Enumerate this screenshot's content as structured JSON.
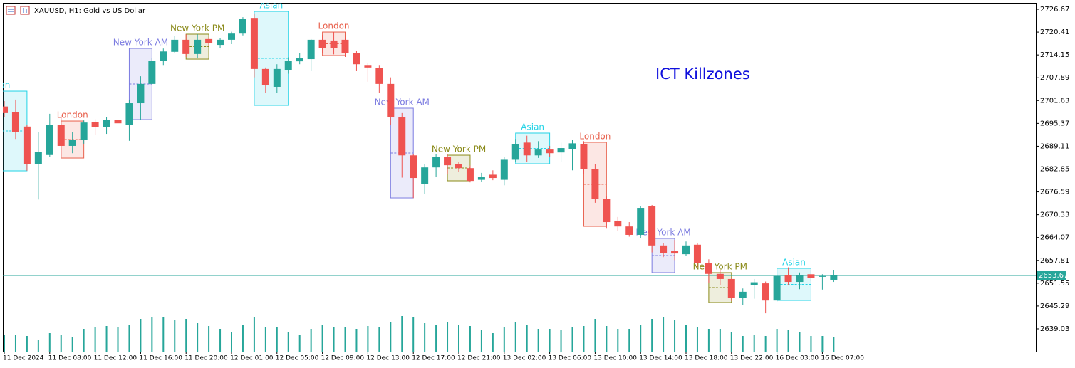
{
  "chart_data": {
    "type": "candlestick",
    "title": "XAUUSD, H1: Gold vs US Dollar",
    "annotation": "ICT Killzones",
    "categories": [
      "11 Dec 2024",
      null,
      null,
      null,
      "11 Dec 08:00",
      null,
      null,
      null,
      "11 Dec 12:00",
      null,
      null,
      null,
      "11 Dec 16:00",
      null,
      null,
      null,
      "11 Dec 20:00",
      null,
      null,
      null,
      "12 Dec 01:00",
      null,
      null,
      null,
      "12 Dec 05:00",
      null,
      null,
      null,
      "12 Dec 09:00",
      null,
      null,
      null,
      "12 Dec 13:00",
      null,
      null,
      null,
      "12 Dec 17:00",
      null,
      null,
      null,
      "12 Dec 21:00",
      null,
      null,
      null,
      "13 Dec 02:00",
      null,
      null,
      null,
      "13 Dec 06:00",
      null,
      null,
      null,
      "13 Dec 10:00",
      null,
      null,
      null,
      "13 Dec 14:00",
      null,
      null,
      null,
      "13 Dec 18:00",
      null,
      null,
      null,
      "13 Dec 22:00",
      null,
      null,
      null,
      "16 Dec 03:00",
      null,
      null,
      null,
      "16 Dec 07:00",
      null
    ],
    "open": [
      2700.0,
      2698.37,
      2694.5,
      2684.3,
      2686.7,
      2695.0,
      2689.2,
      2690.9,
      2695.8,
      2694.4,
      2696.4,
      2695.0,
      2700.9,
      2706.2,
      2712.6,
      2715.0,
      2718.3,
      2714.4,
      2718.5,
      2716.9,
      2718.3,
      2720.0,
      2724.3,
      2710.3,
      2705.4,
      2710.0,
      2712.4,
      2713.0,
      2718.3,
      2718.1,
      2718.3,
      2714.6,
      2711.2,
      2710.6,
      2706.2,
      2697.0,
      2686.6,
      2678.8,
      2683.3,
      2686.2,
      2684.3,
      2683.1,
      2679.9,
      2681.3,
      2679.9,
      2685.4,
      2690.1,
      2686.6,
      2688.2,
      2687.4,
      2688.4,
      2689.7,
      2682.8,
      2674.6,
      2668.7,
      2667.1,
      2664.8,
      2672.6,
      2661.9,
      2660.3,
      2659.5,
      2662.1,
      2657.0,
      2654.1,
      2652.7,
      2647.6,
      2651.1,
      2651.5,
      2646.8,
      2653.8,
      2651.9,
      2654.0,
      2653.3,
      2652.5
    ],
    "high": [
      2701.5,
      2701.9,
      2695.0,
      2693.1,
      2698.0,
      2697.5,
      2693.1,
      2696.2,
      2696.5,
      2697.2,
      2697.5,
      2701.9,
      2708.3,
      2713.2,
      2715.9,
      2719.4,
      2719.8,
      2719.8,
      2719.0,
      2718.7,
      2720.5,
      2724.5,
      2725.3,
      2710.7,
      2711.6,
      2713.5,
      2714.6,
      2718.5,
      2719.6,
      2720.4,
      2718.7,
      2715.3,
      2712.0,
      2711.2,
      2708.0,
      2698.2,
      2687.0,
      2684.2,
      2687.0,
      2687.0,
      2684.8,
      2683.8,
      2681.8,
      2682.5,
      2686.2,
      2691.1,
      2692.0,
      2690.5,
      2689.2,
      2690.1,
      2690.9,
      2690.5,
      2684.3,
      2675.3,
      2669.7,
      2668.3,
      2672.6,
      2673.0,
      2662.6,
      2663.4,
      2663.0,
      2662.6,
      2658.1,
      2655.1,
      2653.1,
      2650.1,
      2652.7,
      2652.0,
      2653.9,
      2655.9,
      2654.5,
      2655.3,
      2654.0,
      2655.1
    ],
    "low": [
      2697.0,
      2691.1,
      2682.4,
      2674.5,
      2686.2,
      2686.3,
      2687.2,
      2689.8,
      2692.2,
      2692.5,
      2693.0,
      2690.6,
      2696.4,
      2705.8,
      2711.2,
      2714.6,
      2713.6,
      2713.2,
      2716.5,
      2716.1,
      2717.1,
      2719.5,
      2708.0,
      2703.8,
      2703.8,
      2709.0,
      2711.6,
      2709.7,
      2714.6,
      2714.3,
      2713.6,
      2709.7,
      2706.8,
      2703.8,
      2695.0,
      2680.5,
      2674.9,
      2676.1,
      2680.6,
      2681.5,
      2682.0,
      2679.2,
      2679.4,
      2679.8,
      2678.4,
      2684.8,
      2684.8,
      2685.9,
      2686.2,
      2684.7,
      2682.5,
      2681.5,
      2673.6,
      2666.5,
      2665.8,
      2664.3,
      2664.0,
      2660.0,
      2658.7,
      2657.9,
      2659.1,
      2656.0,
      2651.6,
      2651.1,
      2646.7,
      2645.6,
      2647.3,
      2643.3,
      2646.5,
      2651.0,
      2649.9,
      2652.1,
      2649.8,
      2651.9
    ],
    "close": [
      2698.2,
      2693.1,
      2684.3,
      2687.6,
      2695.0,
      2689.2,
      2690.9,
      2695.6,
      2694.4,
      2696.3,
      2695.4,
      2700.9,
      2706.2,
      2712.6,
      2715.1,
      2718.3,
      2714.4,
      2718.3,
      2717.3,
      2718.3,
      2720.0,
      2724.1,
      2710.3,
      2705.8,
      2710.3,
      2712.6,
      2713.2,
      2718.3,
      2716.0,
      2716.0,
      2714.7,
      2711.6,
      2710.7,
      2706.2,
      2697.0,
      2686.6,
      2680.4,
      2683.3,
      2686.2,
      2683.9,
      2683.1,
      2679.6,
      2680.6,
      2680.4,
      2685.4,
      2689.7,
      2686.6,
      2688.2,
      2687.2,
      2688.6,
      2689.9,
      2682.8,
      2674.6,
      2668.3,
      2667.1,
      2664.8,
      2672.2,
      2661.9,
      2659.9,
      2659.7,
      2661.9,
      2657.0,
      2654.1,
      2652.7,
      2647.6,
      2649.2,
      2651.8,
      2646.8,
      2653.5,
      2651.9,
      2653.8,
      2652.9,
      2653.5,
      2653.67
    ],
    "volume": [
      2400,
      2400,
      2200,
      1600,
      2600,
      2400,
      2000,
      3200,
      3400,
      3600,
      3400,
      3800,
      4600,
      4800,
      4800,
      4400,
      4600,
      4000,
      3600,
      3200,
      2800,
      3800,
      4800,
      3400,
      3400,
      2800,
      2400,
      3200,
      3800,
      3400,
      3400,
      3200,
      3600,
      3400,
      4200,
      5000,
      4800,
      4000,
      3800,
      4200,
      3800,
      3600,
      3000,
      2600,
      3400,
      4200,
      3800,
      3200,
      3200,
      3000,
      3400,
      3600,
      4600,
      3600,
      3200,
      3200,
      3800,
      4600,
      4800,
      4400,
      3800,
      3400,
      3200,
      3200,
      2800,
      2200,
      2400,
      2200,
      3200,
      3000,
      2800,
      2200,
      2200,
      2000
    ],
    "vlim": [
      0,
      6000
    ],
    "bull_color": "#26a69a",
    "bear_color": "#ef5350",
    "ylim": [
      2632.78,
      2728.43
    ],
    "yticks": [
      2726.67,
      2720.41,
      2714.15,
      2707.89,
      2701.63,
      2695.37,
      2689.11,
      2682.85,
      2676.59,
      2670.33,
      2664.07,
      2657.81,
      2651.55,
      2645.29,
      2639.03
    ],
    "current_price": 2653.67,
    "current_color": "#26a69a",
    "killzones": [
      {
        "name": "Asian",
        "from": -3,
        "to": 2,
        "high": 2704.22,
        "low": 2682.36,
        "color": "#22d3e6"
      },
      {
        "name": "London",
        "from": 5,
        "to": 7,
        "high": 2696.02,
        "low": 2685.87,
        "color": "#e8604c"
      },
      {
        "name": "New York AM",
        "from": 11,
        "to": 13,
        "high": 2715.93,
        "low": 2696.41,
        "color": "#7b7be0"
      },
      {
        "name": "New York PM",
        "from": 16,
        "to": 18,
        "high": 2719.84,
        "low": 2713.0,
        "color": "#8b8b1a"
      },
      {
        "name": "Asian",
        "from": 22,
        "to": 25,
        "high": 2726.08,
        "low": 2700.32,
        "color": "#22d3e6"
      },
      {
        "name": "London",
        "from": 28,
        "to": 30,
        "high": 2720.42,
        "low": 2713.98,
        "color": "#e8604c"
      },
      {
        "name": "New York AM",
        "from": 34,
        "to": 36,
        "high": 2699.54,
        "low": 2674.94,
        "color": "#7b7be0"
      },
      {
        "name": "New York PM",
        "from": 39,
        "to": 41,
        "high": 2686.65,
        "low": 2679.63,
        "color": "#8b8b1a"
      },
      {
        "name": "Asian",
        "from": 45,
        "to": 48,
        "high": 2692.71,
        "low": 2684.31,
        "color": "#22d3e6"
      },
      {
        "name": "London",
        "from": 51,
        "to": 53,
        "high": 2690.17,
        "low": 2667.13,
        "color": "#e8604c"
      },
      {
        "name": "New York AM",
        "from": 57,
        "to": 59,
        "high": 2663.82,
        "low": 2654.45,
        "color": "#7b7be0"
      },
      {
        "name": "New York PM",
        "from": 62,
        "to": 64,
        "high": 2654.45,
        "low": 2646.25,
        "color": "#8b8b1a"
      },
      {
        "name": "Asian",
        "from": 68,
        "to": 71,
        "high": 2655.62,
        "low": 2646.83,
        "color": "#22d3e6"
      }
    ]
  }
}
